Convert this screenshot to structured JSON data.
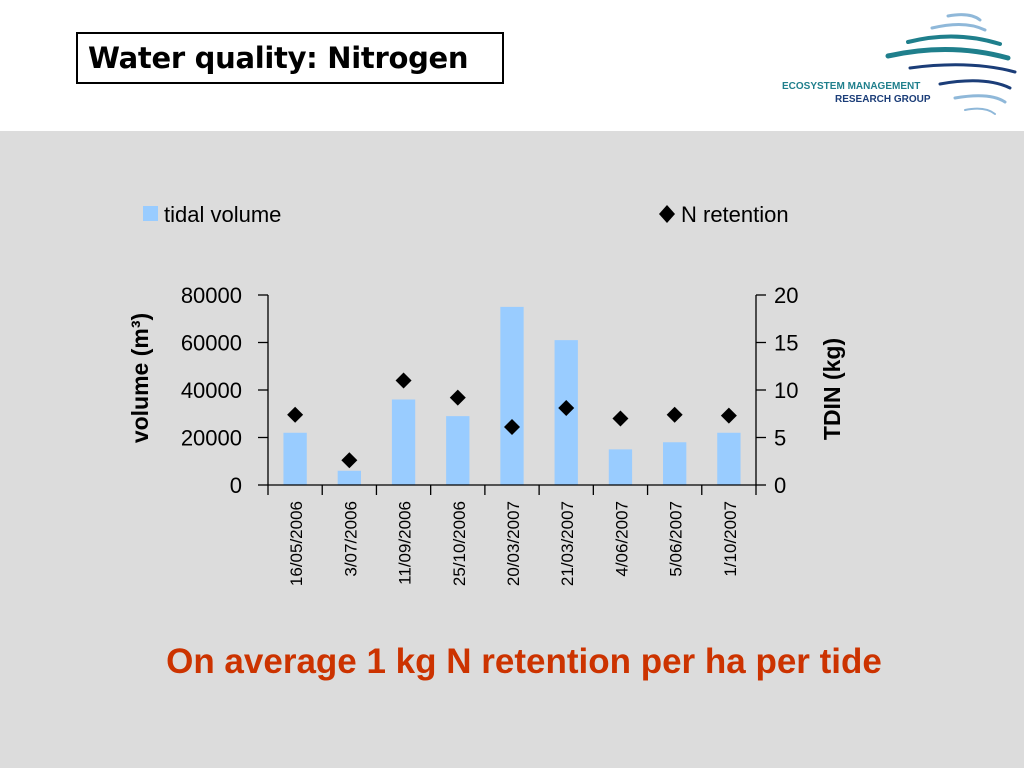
{
  "slide": {
    "title": "Water quality: Nitrogen",
    "caption": "On average 1 kg N retention per ha per tide"
  },
  "logo": {
    "line1": "ECOSYSTEM MANAGEMENT",
    "line2": "RESEARCH GROUP",
    "colors": {
      "teal": "#1f7f8c",
      "navy": "#1b3d78",
      "light_blue": "#8fb8d9"
    }
  },
  "colors": {
    "background": "#dcdcdc",
    "header": "#ffffff",
    "bar": "#99ccff",
    "marker": "#000000",
    "caption": "#cc3300"
  },
  "chart_data": {
    "type": "bar",
    "categories": [
      "16/05/2006",
      "3/07/2006",
      "11/09/2006",
      "25/10/2006",
      "20/03/2007",
      "21/03/2007",
      "4/06/2007",
      "5/06/2007",
      "1/10/2007"
    ],
    "series": [
      {
        "name": "tidal volume",
        "type": "bar",
        "axis": "left",
        "values": [
          22000,
          6000,
          36000,
          29000,
          75000,
          61000,
          15000,
          18000,
          22000
        ]
      },
      {
        "name": "N retention",
        "type": "scatter",
        "axis": "right",
        "marker": "diamond",
        "values": [
          7.4,
          2.6,
          11.0,
          9.2,
          6.1,
          8.1,
          7.0,
          7.4,
          7.3
        ]
      }
    ],
    "ylabel": "volume (m³)",
    "y2label": "TDIN (kg)",
    "xlabel": "",
    "ylim": [
      0,
      80000
    ],
    "yticks": [
      0,
      20000,
      40000,
      60000,
      80000
    ],
    "y2lim": [
      0,
      20
    ],
    "y2ticks": [
      0,
      5,
      10,
      15,
      20
    ],
    "grid": false,
    "legend": "top"
  }
}
